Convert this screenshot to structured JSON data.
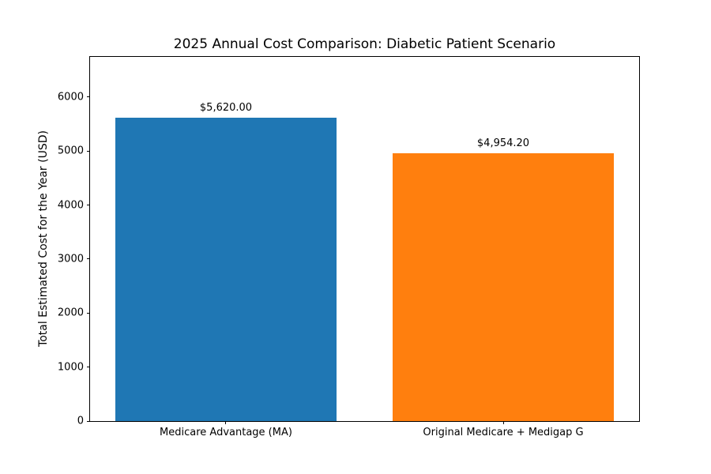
{
  "chart_data": {
    "type": "bar",
    "title": "2025 Annual Cost Comparison: Diabetic Patient Scenario",
    "xlabel": "",
    "ylabel": "Total Estimated Cost for the Year (USD)",
    "categories": [
      "Medicare Advantage (MA)",
      "Original Medicare + Medigap G"
    ],
    "values": [
      5620.0,
      4954.2
    ],
    "value_labels": [
      "$5,620.00",
      "$4,954.20"
    ],
    "bar_colors": [
      "#1f77b4",
      "#ff7f0e"
    ],
    "yticks": [
      0,
      1000,
      2000,
      3000,
      4000,
      5000,
      6000
    ],
    "ylim": [
      0,
      6744
    ],
    "grid": false,
    "legend": "none",
    "background_color": "#ffffff",
    "axis_color": "#000000"
  }
}
